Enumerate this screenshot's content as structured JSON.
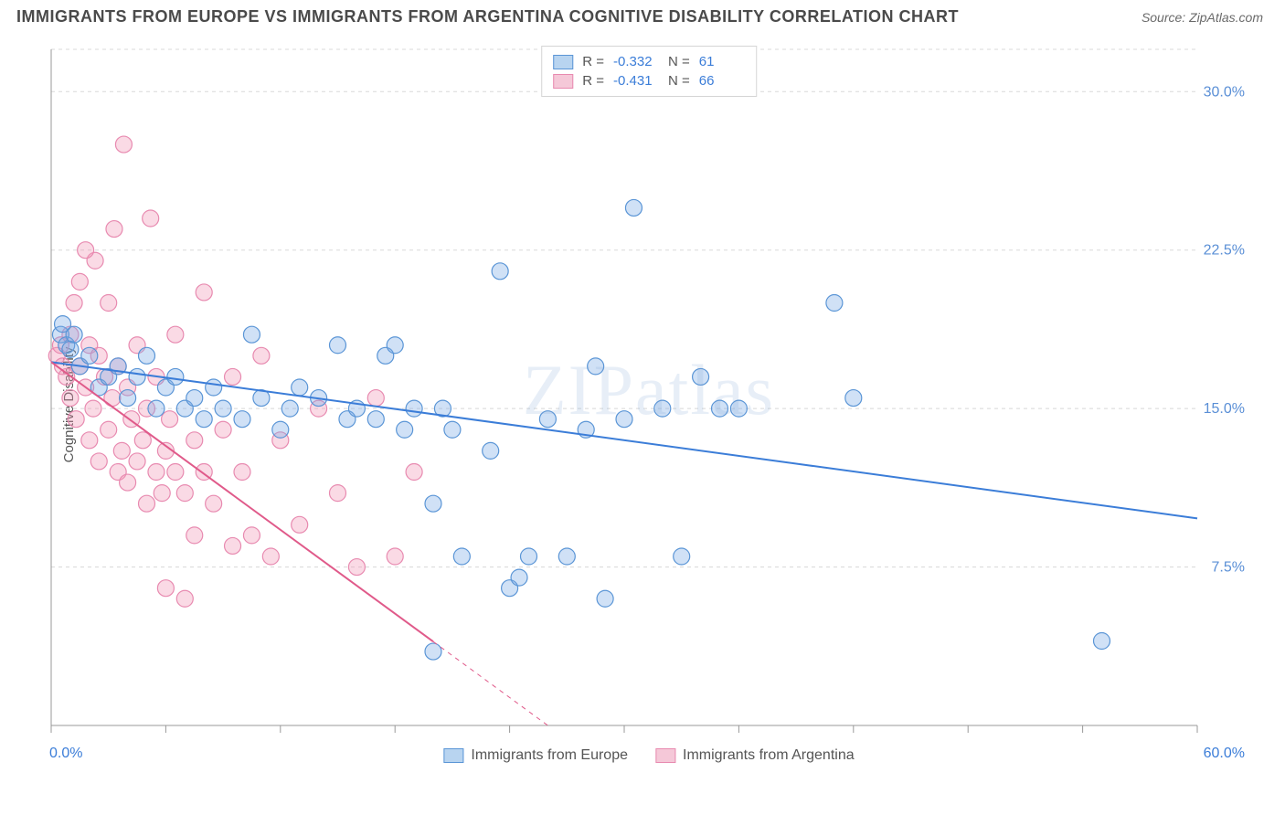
{
  "header": {
    "title": "IMMIGRANTS FROM EUROPE VS IMMIGRANTS FROM ARGENTINA COGNITIVE DISABILITY CORRELATION CHART",
    "source": "Source: ZipAtlas.com"
  },
  "chart": {
    "type": "scatter",
    "ylabel": "Cognitive Disability",
    "watermark": "ZIPatlas",
    "xlim": [
      0,
      60
    ],
    "ylim": [
      0,
      32
    ],
    "x_axis_labels": {
      "min": "0.0%",
      "max": "60.0%"
    },
    "y_ticks": [
      7.5,
      15.0,
      22.5,
      30.0
    ],
    "y_tick_labels": [
      "7.5%",
      "15.0%",
      "22.5%",
      "30.0%"
    ],
    "x_ticks": [
      0,
      6,
      12,
      18,
      24,
      30,
      36,
      42,
      48,
      54,
      60
    ],
    "grid_color": "#d8d8d8",
    "axis_color": "#999999",
    "background_color": "#ffffff",
    "tick_label_color": "#5a8fd6",
    "series": [
      {
        "name": "Immigrants from Europe",
        "color_fill": "rgba(120,170,230,0.35)",
        "color_stroke": "#5a95d6",
        "swatch_fill": "#b8d4f0",
        "swatch_border": "#5a95d6",
        "marker_radius": 9,
        "R": "-0.332",
        "N": "61",
        "trend": {
          "x1": 0,
          "y1": 17.2,
          "x2": 60,
          "y2": 9.8,
          "color": "#3b7dd8",
          "width": 2
        },
        "points": [
          [
            0.5,
            18.5
          ],
          [
            0.8,
            18.0
          ],
          [
            1.0,
            17.8
          ],
          [
            1.2,
            18.5
          ],
          [
            1.5,
            17.0
          ],
          [
            2.0,
            17.5
          ],
          [
            2.5,
            16.0
          ],
          [
            3.0,
            16.5
          ],
          [
            3.5,
            17.0
          ],
          [
            4.0,
            15.5
          ],
          [
            4.5,
            16.5
          ],
          [
            5.0,
            17.5
          ],
          [
            5.5,
            15.0
          ],
          [
            6.0,
            16.0
          ],
          [
            6.5,
            16.5
          ],
          [
            7.0,
            15.0
          ],
          [
            7.5,
            15.5
          ],
          [
            8.0,
            14.5
          ],
          [
            8.5,
            16.0
          ],
          [
            9.0,
            15.0
          ],
          [
            10.0,
            14.5
          ],
          [
            10.5,
            18.5
          ],
          [
            11.0,
            15.5
          ],
          [
            12.0,
            14.0
          ],
          [
            12.5,
            15.0
          ],
          [
            13.0,
            16.0
          ],
          [
            14.0,
            15.5
          ],
          [
            15.0,
            18.0
          ],
          [
            15.5,
            14.5
          ],
          [
            16.0,
            15.0
          ],
          [
            17.0,
            14.5
          ],
          [
            17.5,
            17.5
          ],
          [
            18.0,
            18.0
          ],
          [
            18.5,
            14.0
          ],
          [
            19.0,
            15.0
          ],
          [
            20.0,
            10.5
          ],
          [
            20.5,
            15.0
          ],
          [
            21.0,
            14.0
          ],
          [
            21.5,
            8.0
          ],
          [
            20.0,
            3.5
          ],
          [
            23.0,
            13.0
          ],
          [
            23.5,
            21.5
          ],
          [
            24.0,
            6.5
          ],
          [
            24.5,
            7.0
          ],
          [
            25.0,
            8.0
          ],
          [
            26.0,
            14.5
          ],
          [
            27.0,
            8.0
          ],
          [
            28.0,
            14.0
          ],
          [
            28.5,
            17.0
          ],
          [
            29.0,
            6.0
          ],
          [
            30.0,
            14.5
          ],
          [
            30.5,
            24.5
          ],
          [
            32.0,
            15.0
          ],
          [
            33.0,
            8.0
          ],
          [
            34.0,
            16.5
          ],
          [
            35.0,
            15.0
          ],
          [
            36.0,
            15.0
          ],
          [
            41.0,
            20.0
          ],
          [
            42.0,
            15.5
          ],
          [
            55.0,
            4.0
          ],
          [
            0.6,
            19.0
          ]
        ]
      },
      {
        "name": "Immigrants from Argentina",
        "color_fill": "rgba(240,150,180,0.35)",
        "color_stroke": "#e88ab0",
        "swatch_fill": "#f5c8d8",
        "swatch_border": "#e88ab0",
        "marker_radius": 9,
        "R": "-0.431",
        "N": "66",
        "trend": {
          "x1": 0,
          "y1": 17.2,
          "x2": 26,
          "y2": 0,
          "color": "#e05a8a",
          "width": 2,
          "dash_after_x": 20
        },
        "points": [
          [
            0.3,
            17.5
          ],
          [
            0.5,
            18.0
          ],
          [
            0.6,
            17.0
          ],
          [
            0.8,
            16.5
          ],
          [
            1.0,
            18.5
          ],
          [
            1.0,
            15.5
          ],
          [
            1.2,
            20.0
          ],
          [
            1.3,
            14.5
          ],
          [
            1.5,
            17.0
          ],
          [
            1.5,
            21.0
          ],
          [
            1.8,
            16.0
          ],
          [
            2.0,
            18.0
          ],
          [
            2.0,
            13.5
          ],
          [
            2.2,
            15.0
          ],
          [
            2.3,
            22.0
          ],
          [
            2.5,
            17.5
          ],
          [
            2.5,
            12.5
          ],
          [
            2.8,
            16.5
          ],
          [
            3.0,
            14.0
          ],
          [
            3.0,
            20.0
          ],
          [
            3.2,
            15.5
          ],
          [
            3.3,
            23.5
          ],
          [
            3.5,
            12.0
          ],
          [
            3.5,
            17.0
          ],
          [
            3.7,
            13.0
          ],
          [
            3.8,
            27.5
          ],
          [
            4.0,
            16.0
          ],
          [
            4.0,
            11.5
          ],
          [
            4.2,
            14.5
          ],
          [
            4.5,
            12.5
          ],
          [
            4.5,
            18.0
          ],
          [
            4.8,
            13.5
          ],
          [
            5.0,
            15.0
          ],
          [
            5.0,
            10.5
          ],
          [
            5.2,
            24.0
          ],
          [
            5.5,
            12.0
          ],
          [
            5.5,
            16.5
          ],
          [
            5.8,
            11.0
          ],
          [
            6.0,
            13.0
          ],
          [
            6.0,
            6.5
          ],
          [
            6.2,
            14.5
          ],
          [
            6.5,
            12.0
          ],
          [
            6.5,
            18.5
          ],
          [
            7.0,
            11.0
          ],
          [
            7.0,
            6.0
          ],
          [
            7.5,
            13.5
          ],
          [
            7.5,
            9.0
          ],
          [
            8.0,
            12.0
          ],
          [
            8.0,
            20.5
          ],
          [
            8.5,
            10.5
          ],
          [
            9.0,
            14.0
          ],
          [
            9.5,
            8.5
          ],
          [
            9.5,
            16.5
          ],
          [
            10.0,
            12.0
          ],
          [
            10.5,
            9.0
          ],
          [
            11.0,
            17.5
          ],
          [
            11.5,
            8.0
          ],
          [
            12.0,
            13.5
          ],
          [
            13.0,
            9.5
          ],
          [
            14.0,
            15.0
          ],
          [
            15.0,
            11.0
          ],
          [
            16.0,
            7.5
          ],
          [
            17.0,
            15.5
          ],
          [
            18.0,
            8.0
          ],
          [
            19.0,
            12.0
          ],
          [
            1.8,
            22.5
          ]
        ]
      }
    ],
    "legend_top": {
      "R_label": "R =",
      "N_label": "N ="
    },
    "legend_bottom": [
      {
        "label": "Immigrants from Europe"
      },
      {
        "label": "Immigrants from Argentina"
      }
    ]
  }
}
